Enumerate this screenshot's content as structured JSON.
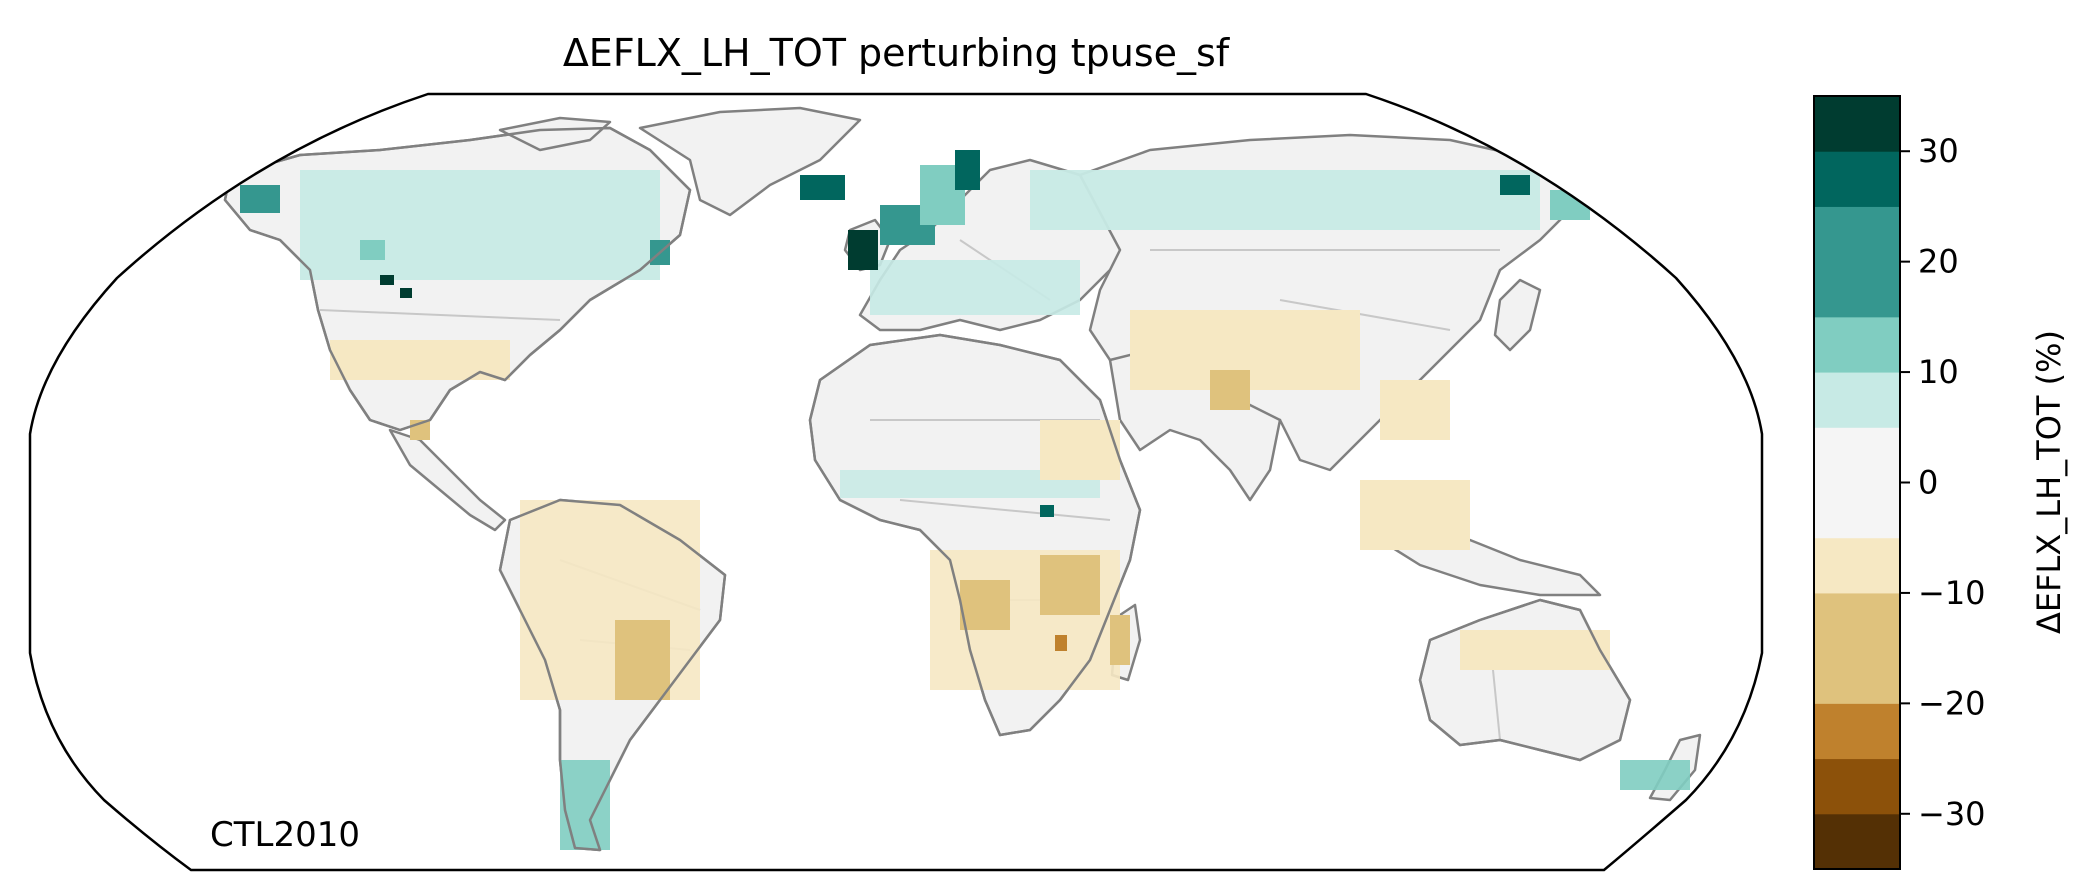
{
  "title": "ΔEFLX_LH_TOT perturbing tpuse_sf",
  "annotation": "CTL2010",
  "projection": "Robinson",
  "colorbar": {
    "label": "ΔEFLX_LH_TOT (%)",
    "colormap": "BrBG",
    "range": [
      -35,
      35
    ],
    "bins": [
      {
        "range": [
          -35,
          -30
        ],
        "color": "#543005"
      },
      {
        "range": [
          -30,
          -25
        ],
        "color": "#8c510a"
      },
      {
        "range": [
          -25,
          -20
        ],
        "color": "#bf812d"
      },
      {
        "range": [
          -20,
          -10
        ],
        "color": "#dfc27d"
      },
      {
        "range": [
          -10,
          -5
        ],
        "color": "#f6e8c3"
      },
      {
        "range": [
          -5,
          5
        ],
        "color": "#f5f5f5"
      },
      {
        "range": [
          5,
          10
        ],
        "color": "#c7eae5"
      },
      {
        "range": [
          10,
          15
        ],
        "color": "#80cdc1"
      },
      {
        "range": [
          15,
          25
        ],
        "color": "#35978f"
      },
      {
        "range": [
          25,
          30
        ],
        "color": "#01665e"
      },
      {
        "range": [
          30,
          35
        ],
        "color": "#003c30"
      }
    ],
    "ticks": [
      {
        "value": 30,
        "label": "30"
      },
      {
        "value": 20,
        "label": "20"
      },
      {
        "value": 10,
        "label": "10"
      },
      {
        "value": 0,
        "label": "0"
      },
      {
        "value": -10,
        "label": "−10"
      },
      {
        "value": -20,
        "label": "−20"
      },
      {
        "value": -30,
        "label": "−30"
      }
    ]
  },
  "colors": {
    "coastline": "#808080",
    "borders": "#c8c8c8",
    "land_neutral": "#f2f2f2",
    "frame": "#000000"
  }
}
